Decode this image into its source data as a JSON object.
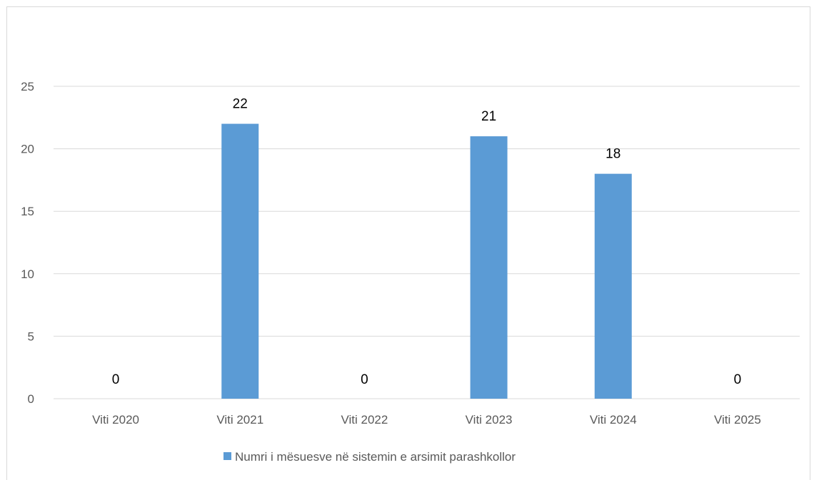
{
  "chart_data": {
    "type": "bar",
    "categories": [
      "Viti 2020",
      "Viti 2021",
      "Viti 2022",
      "Viti 2023",
      "Viti 2024",
      "Viti 2025"
    ],
    "series": [
      {
        "name": "Numri i mësuesve në sistemin e arsimit parashkollor",
        "values": [
          0,
          22,
          0,
          21,
          18,
          0
        ],
        "color": "#5b9bd5"
      }
    ],
    "data_labels": [
      "0",
      "22",
      "0",
      "21",
      "18",
      "0"
    ],
    "yticks": [
      "0",
      "5",
      "10",
      "15",
      "20",
      "25"
    ],
    "ylim": [
      0,
      25
    ],
    "grid": true,
    "legend_position": "bottom",
    "colors": {
      "gridline": "#d9d9d9",
      "text": "#595959",
      "label": "#000000"
    }
  }
}
